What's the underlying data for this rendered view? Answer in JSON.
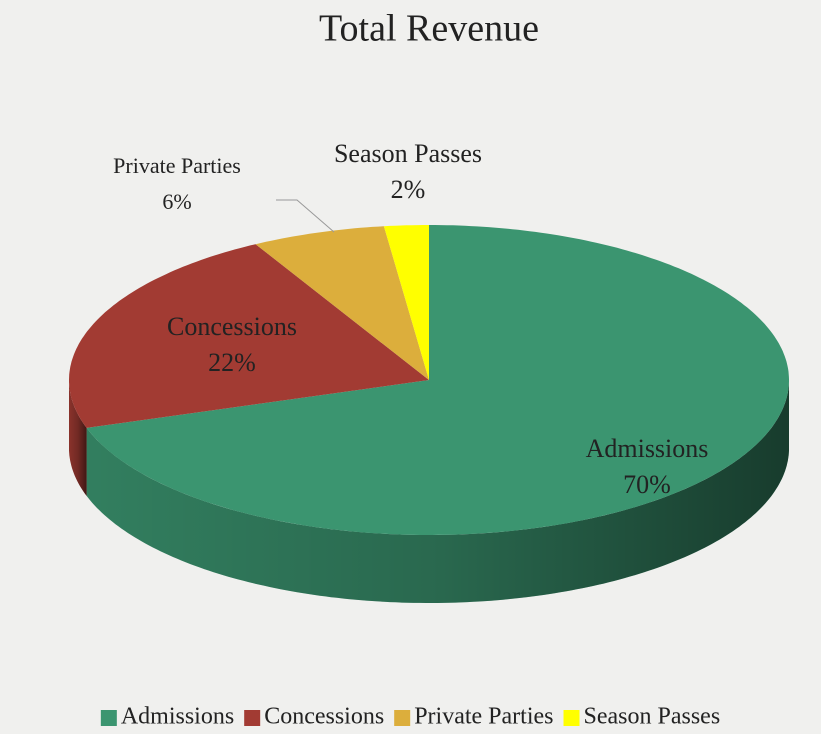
{
  "chart_data": {
    "type": "pie",
    "title": "Total Revenue",
    "categories": [
      "Admissions",
      "Concessions",
      "Private Parties",
      "Season Passes"
    ],
    "values": [
      70,
      22,
      6,
      2
    ],
    "value_labels": [
      "70%",
      "22%",
      "6%",
      "2%"
    ],
    "colors": [
      "#3b9570",
      "#a23b33",
      "#dcae3c",
      "#ffff00"
    ],
    "legend": "bottom"
  }
}
